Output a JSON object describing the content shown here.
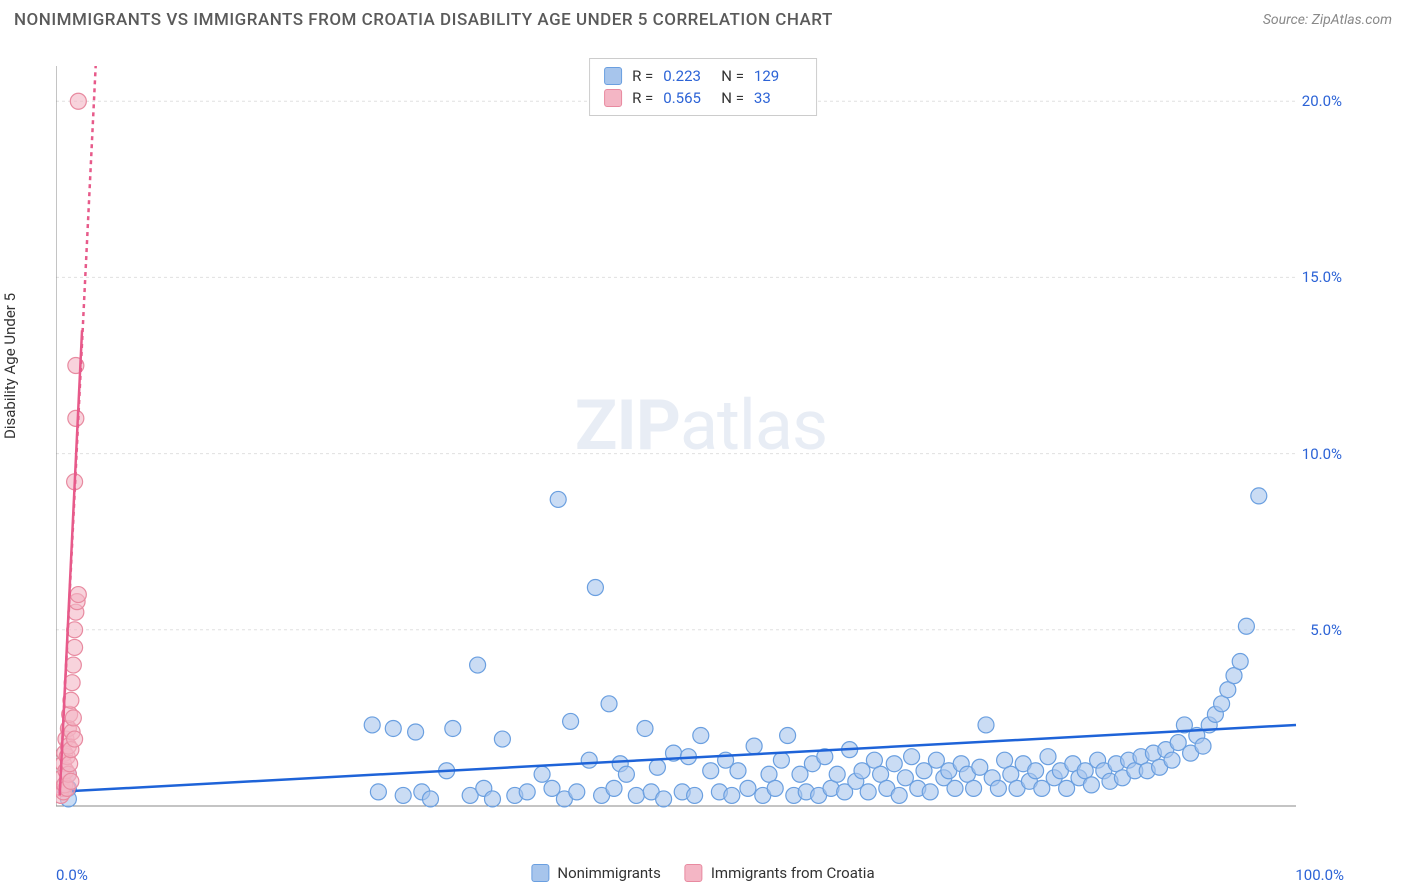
{
  "header": {
    "title": "NONIMMIGRANTS VS IMMIGRANTS FROM CROATIA DISABILITY AGE UNDER 5 CORRELATION CHART",
    "source_prefix": "Source: ",
    "source_name": "ZipAtlas.com"
  },
  "watermark": {
    "bold": "ZIP",
    "light": "atlas"
  },
  "chart": {
    "type": "scatter",
    "y_axis_label": "Disability Age Under 5",
    "background_color": "#ffffff",
    "grid_color": "#e0e0e0",
    "axis_color": "#888888",
    "xlim": [
      0,
      100
    ],
    "ylim": [
      0,
      21
    ],
    "x_ticks": [
      "0.0%",
      "100.0%"
    ],
    "y_ticks": [
      {
        "value": 5,
        "label": "5.0%"
      },
      {
        "value": 10,
        "label": "10.0%"
      },
      {
        "value": 15,
        "label": "15.0%"
      },
      {
        "value": 20,
        "label": "20.0%"
      }
    ],
    "marker_radius": 8,
    "marker_stroke_width": 1.2,
    "trendline_width": 2.5,
    "series": [
      {
        "name": "Nonimmigrants",
        "fill_color": "#a7c5ec",
        "fill_opacity": 0.6,
        "stroke_color": "#6a9fe0",
        "line_color": "#1e63d8",
        "line_dash": "none",
        "trend": {
          "x1": 0,
          "y1": 0.4,
          "x2": 100,
          "y2": 2.3
        },
        "legend": {
          "r": "0.223",
          "n": "129"
        },
        "points": [
          {
            "x": 1.0,
            "y": 0.5
          },
          {
            "x": 1.0,
            "y": 0.2
          },
          {
            "x": 1.0,
            "y": 0.9
          },
          {
            "x": 25.5,
            "y": 2.3
          },
          {
            "x": 26.0,
            "y": 0.4
          },
          {
            "x": 27.2,
            "y": 2.2
          },
          {
            "x": 28.0,
            "y": 0.3
          },
          {
            "x": 29.0,
            "y": 2.1
          },
          {
            "x": 29.5,
            "y": 0.4
          },
          {
            "x": 30.2,
            "y": 0.2
          },
          {
            "x": 31.5,
            "y": 1.0
          },
          {
            "x": 32.0,
            "y": 2.2
          },
          {
            "x": 33.4,
            "y": 0.3
          },
          {
            "x": 34.0,
            "y": 4.0
          },
          {
            "x": 34.5,
            "y": 0.5
          },
          {
            "x": 35.2,
            "y": 0.2
          },
          {
            "x": 36.0,
            "y": 1.9
          },
          {
            "x": 37.0,
            "y": 0.3
          },
          {
            "x": 38.0,
            "y": 0.4
          },
          {
            "x": 39.2,
            "y": 0.9
          },
          {
            "x": 40.0,
            "y": 0.5
          },
          {
            "x": 40.5,
            "y": 8.7
          },
          {
            "x": 41.0,
            "y": 0.2
          },
          {
            "x": 41.5,
            "y": 2.4
          },
          {
            "x": 42.0,
            "y": 0.4
          },
          {
            "x": 43.0,
            "y": 1.3
          },
          {
            "x": 43.5,
            "y": 6.2
          },
          {
            "x": 44.0,
            "y": 0.3
          },
          {
            "x": 44.6,
            "y": 2.9
          },
          {
            "x": 45.0,
            "y": 0.5
          },
          {
            "x": 45.5,
            "y": 1.2
          },
          {
            "x": 46.0,
            "y": 0.9
          },
          {
            "x": 46.8,
            "y": 0.3
          },
          {
            "x": 47.5,
            "y": 2.2
          },
          {
            "x": 48.0,
            "y": 0.4
          },
          {
            "x": 48.5,
            "y": 1.1
          },
          {
            "x": 49.0,
            "y": 0.2
          },
          {
            "x": 49.8,
            "y": 1.5
          },
          {
            "x": 50.5,
            "y": 0.4
          },
          {
            "x": 51.0,
            "y": 1.4
          },
          {
            "x": 51.5,
            "y": 0.3
          },
          {
            "x": 52.0,
            "y": 2.0
          },
          {
            "x": 52.8,
            "y": 1.0
          },
          {
            "x": 53.5,
            "y": 0.4
          },
          {
            "x": 54.0,
            "y": 1.3
          },
          {
            "x": 54.5,
            "y": 0.3
          },
          {
            "x": 55.0,
            "y": 1.0
          },
          {
            "x": 55.8,
            "y": 0.5
          },
          {
            "x": 56.3,
            "y": 1.7
          },
          {
            "x": 57.0,
            "y": 0.3
          },
          {
            "x": 57.5,
            "y": 0.9
          },
          {
            "x": 58.0,
            "y": 0.5
          },
          {
            "x": 58.5,
            "y": 1.3
          },
          {
            "x": 59.0,
            "y": 2.0
          },
          {
            "x": 59.5,
            "y": 0.3
          },
          {
            "x": 60.0,
            "y": 0.9
          },
          {
            "x": 60.5,
            "y": 0.4
          },
          {
            "x": 61.0,
            "y": 1.2
          },
          {
            "x": 61.5,
            "y": 0.3
          },
          {
            "x": 62.0,
            "y": 1.4
          },
          {
            "x": 62.5,
            "y": 0.5
          },
          {
            "x": 63.0,
            "y": 0.9
          },
          {
            "x": 63.6,
            "y": 0.4
          },
          {
            "x": 64.0,
            "y": 1.6
          },
          {
            "x": 64.5,
            "y": 0.7
          },
          {
            "x": 65.0,
            "y": 1.0
          },
          {
            "x": 65.5,
            "y": 0.4
          },
          {
            "x": 66.0,
            "y": 1.3
          },
          {
            "x": 66.5,
            "y": 0.9
          },
          {
            "x": 67.0,
            "y": 0.5
          },
          {
            "x": 67.6,
            "y": 1.2
          },
          {
            "x": 68.0,
            "y": 0.3
          },
          {
            "x": 68.5,
            "y": 0.8
          },
          {
            "x": 69.0,
            "y": 1.4
          },
          {
            "x": 69.5,
            "y": 0.5
          },
          {
            "x": 70.0,
            "y": 1.0
          },
          {
            "x": 70.5,
            "y": 0.4
          },
          {
            "x": 71.0,
            "y": 1.3
          },
          {
            "x": 71.6,
            "y": 0.8
          },
          {
            "x": 72.0,
            "y": 1.0
          },
          {
            "x": 72.5,
            "y": 0.5
          },
          {
            "x": 73.0,
            "y": 1.2
          },
          {
            "x": 73.5,
            "y": 0.9
          },
          {
            "x": 74.0,
            "y": 0.5
          },
          {
            "x": 74.5,
            "y": 1.1
          },
          {
            "x": 75.0,
            "y": 2.3
          },
          {
            "x": 75.5,
            "y": 0.8
          },
          {
            "x": 76.0,
            "y": 0.5
          },
          {
            "x": 76.5,
            "y": 1.3
          },
          {
            "x": 77.0,
            "y": 0.9
          },
          {
            "x": 77.5,
            "y": 0.5
          },
          {
            "x": 78.0,
            "y": 1.2
          },
          {
            "x": 78.5,
            "y": 0.7
          },
          {
            "x": 79.0,
            "y": 1.0
          },
          {
            "x": 79.5,
            "y": 0.5
          },
          {
            "x": 80.0,
            "y": 1.4
          },
          {
            "x": 80.5,
            "y": 0.8
          },
          {
            "x": 81.0,
            "y": 1.0
          },
          {
            "x": 81.5,
            "y": 0.5
          },
          {
            "x": 82.0,
            "y": 1.2
          },
          {
            "x": 82.5,
            "y": 0.8
          },
          {
            "x": 83.0,
            "y": 1.0
          },
          {
            "x": 83.5,
            "y": 0.6
          },
          {
            "x": 84.0,
            "y": 1.3
          },
          {
            "x": 84.5,
            "y": 1.0
          },
          {
            "x": 85.0,
            "y": 0.7
          },
          {
            "x": 85.5,
            "y": 1.2
          },
          {
            "x": 86.0,
            "y": 0.8
          },
          {
            "x": 86.5,
            "y": 1.3
          },
          {
            "x": 87.0,
            "y": 1.0
          },
          {
            "x": 87.5,
            "y": 1.4
          },
          {
            "x": 88.0,
            "y": 1.0
          },
          {
            "x": 88.5,
            "y": 1.5
          },
          {
            "x": 89.0,
            "y": 1.1
          },
          {
            "x": 89.5,
            "y": 1.6
          },
          {
            "x": 90.0,
            "y": 1.3
          },
          {
            "x": 90.5,
            "y": 1.8
          },
          {
            "x": 91.0,
            "y": 2.3
          },
          {
            "x": 91.5,
            "y": 1.5
          },
          {
            "x": 92.0,
            "y": 2.0
          },
          {
            "x": 92.5,
            "y": 1.7
          },
          {
            "x": 93.0,
            "y": 2.3
          },
          {
            "x": 93.5,
            "y": 2.6
          },
          {
            "x": 94.0,
            "y": 2.9
          },
          {
            "x": 94.5,
            "y": 3.3
          },
          {
            "x": 95.0,
            "y": 3.7
          },
          {
            "x": 95.5,
            "y": 4.1
          },
          {
            "x": 96.0,
            "y": 5.1
          },
          {
            "x": 97.0,
            "y": 8.8
          }
        ]
      },
      {
        "name": "Immigrants from Croatia",
        "fill_color": "#f4b6c5",
        "fill_opacity": 0.6,
        "stroke_color": "#e88aa0",
        "line_color": "#e75a8a",
        "line_dash": "4,4",
        "trend": {
          "x1": 0.3,
          "y1": 0.3,
          "x2": 3.2,
          "y2": 21
        },
        "solid_trend": {
          "x1": 0.3,
          "y1": 0.3,
          "x2": 2.1,
          "y2": 13.5
        },
        "legend": {
          "r": "0.565",
          "n": "33"
        },
        "points": [
          {
            "x": 0.4,
            "y": 0.3
          },
          {
            "x": 0.5,
            "y": 0.5
          },
          {
            "x": 0.5,
            "y": 0.8
          },
          {
            "x": 0.6,
            "y": 1.2
          },
          {
            "x": 0.6,
            "y": 0.4
          },
          {
            "x": 0.7,
            "y": 1.5
          },
          {
            "x": 0.7,
            "y": 0.6
          },
          {
            "x": 0.8,
            "y": 1.0
          },
          {
            "x": 0.8,
            "y": 1.9
          },
          {
            "x": 0.9,
            "y": 1.4
          },
          {
            "x": 0.9,
            "y": 0.5
          },
          {
            "x": 1.0,
            "y": 2.2
          },
          {
            "x": 1.0,
            "y": 1.7
          },
          {
            "x": 1.0,
            "y": 0.9
          },
          {
            "x": 1.1,
            "y": 2.6
          },
          {
            "x": 1.1,
            "y": 1.2
          },
          {
            "x": 1.2,
            "y": 3.0
          },
          {
            "x": 1.2,
            "y": 1.6
          },
          {
            "x": 1.2,
            "y": 0.7
          },
          {
            "x": 1.3,
            "y": 2.1
          },
          {
            "x": 1.3,
            "y": 3.5
          },
          {
            "x": 1.4,
            "y": 4.0
          },
          {
            "x": 1.4,
            "y": 2.5
          },
          {
            "x": 1.5,
            "y": 4.5
          },
          {
            "x": 1.5,
            "y": 1.9
          },
          {
            "x": 1.5,
            "y": 5.0
          },
          {
            "x": 1.6,
            "y": 5.5
          },
          {
            "x": 1.7,
            "y": 5.8
          },
          {
            "x": 1.8,
            "y": 6.0
          },
          {
            "x": 1.5,
            "y": 9.2
          },
          {
            "x": 1.6,
            "y": 11.0
          },
          {
            "x": 1.6,
            "y": 12.5
          },
          {
            "x": 1.8,
            "y": 20.0
          }
        ]
      }
    ],
    "legend_bottom": [
      {
        "label": "Nonimmigrants",
        "color": "#a7c5ec",
        "border": "#6a9fe0"
      },
      {
        "label": "Immigrants from Croatia",
        "color": "#f4b6c5",
        "border": "#e88aa0"
      }
    ]
  }
}
